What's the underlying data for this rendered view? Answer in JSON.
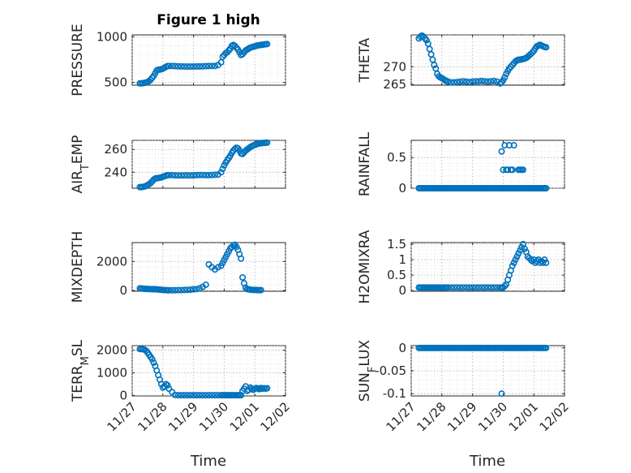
{
  "figure": {
    "title": "Figure 1 high",
    "xlabel": "Time",
    "marker_color": "#0072bd",
    "x_ticks": [
      "11/27",
      "11/28",
      "11/29",
      "11/30",
      "12/01",
      "12/02"
    ]
  },
  "chart_data": [
    {
      "type": "scatter",
      "ylabel": "PRESSURE",
      "title": "Figure 1 high",
      "ylim": [
        470,
        1020
      ],
      "yticks": [
        500,
        1000
      ],
      "yticklabels": [
        "500",
        "1000"
      ],
      "xlim": [
        0,
        5
      ],
      "x": [
        0.25,
        0.3,
        0.35,
        0.4,
        0.45,
        0.5,
        0.55,
        0.6,
        0.65,
        0.7,
        0.75,
        0.8,
        0.85,
        0.9,
        0.95,
        1.0,
        1.05,
        1.1,
        1.15,
        1.2,
        1.3,
        1.4,
        1.5,
        1.6,
        1.7,
        1.8,
        1.9,
        2.0,
        2.1,
        2.2,
        2.3,
        2.4,
        2.5,
        2.6,
        2.7,
        2.8,
        2.9,
        2.95,
        3.0,
        3.05,
        3.1,
        3.15,
        3.2,
        3.25,
        3.3,
        3.35,
        3.4,
        3.45,
        3.5,
        3.55,
        3.6,
        3.65,
        3.7,
        3.75,
        3.8,
        3.85,
        3.9,
        3.95,
        4.0,
        4.05,
        4.1,
        4.15,
        4.2,
        4.25,
        4.3,
        4.35,
        4.4
      ],
      "y": [
        490,
        490,
        492,
        495,
        498,
        505,
        515,
        530,
        550,
        570,
        600,
        630,
        640,
        640,
        645,
        650,
        660,
        670,
        680,
        680,
        680,
        678,
        676,
        675,
        674,
        674,
        674,
        674,
        675,
        675,
        676,
        678,
        680,
        680,
        680,
        690,
        720,
        780,
        800,
        820,
        830,
        850,
        870,
        900,
        910,
        900,
        880,
        860,
        830,
        800,
        810,
        830,
        850,
        860,
        870,
        880,
        885,
        890,
        895,
        900,
        905,
        908,
        910,
        912,
        915,
        918,
        920
      ]
    },
    {
      "type": "scatter",
      "ylabel": "THETA",
      "ylim": [
        264.8,
        279
      ],
      "yticks": [
        265,
        270
      ],
      "yticklabels": [
        "265",
        "270"
      ],
      "xlim": [
        0,
        5
      ],
      "x": [
        0.25,
        0.3,
        0.35,
        0.4,
        0.45,
        0.5,
        0.55,
        0.6,
        0.65,
        0.7,
        0.75,
        0.8,
        0.85,
        0.9,
        0.95,
        1.0,
        1.05,
        1.1,
        1.15,
        1.2,
        1.3,
        1.4,
        1.5,
        1.6,
        1.7,
        1.8,
        1.9,
        2.0,
        2.1,
        2.2,
        2.3,
        2.4,
        2.5,
        2.6,
        2.7,
        2.8,
        2.9,
        2.95,
        3.0,
        3.05,
        3.1,
        3.15,
        3.2,
        3.25,
        3.3,
        3.35,
        3.4,
        3.45,
        3.5,
        3.55,
        3.6,
        3.65,
        3.7,
        3.75,
        3.8,
        3.85,
        3.9,
        3.95,
        4.0,
        4.05,
        4.1,
        4.15,
        4.2,
        4.25,
        4.3,
        4.35,
        4.4
      ],
      "y": [
        278,
        278.5,
        278.8,
        278.5,
        278,
        277.5,
        276.5,
        275,
        273.5,
        272,
        270.5,
        269.5,
        268,
        267.3,
        267,
        266.8,
        266.5,
        266.2,
        266,
        265.8,
        265.6,
        265.6,
        265.7,
        265.8,
        265.9,
        265.8,
        265.7,
        265.8,
        265.9,
        265.9,
        266,
        265.9,
        265.8,
        265.9,
        266,
        265.8,
        265.3,
        265.6,
        266.2,
        267,
        268,
        268.8,
        269.5,
        270,
        270.5,
        271,
        271.5,
        271.8,
        272,
        272,
        272.1,
        272.2,
        272.3,
        272.5,
        272.8,
        273.2,
        273.6,
        274,
        274.5,
        275.2,
        275.8,
        276,
        276.2,
        276,
        275.8,
        275.6,
        275.5
      ]
    },
    {
      "type": "scatter",
      "ylabel": "AIR_TEMP",
      "ylim": [
        226,
        268
      ],
      "yticks": [
        240,
        260
      ],
      "yticklabels": [
        "240",
        "260"
      ],
      "xlim": [
        0,
        5
      ],
      "x": [
        0.25,
        0.3,
        0.35,
        0.4,
        0.45,
        0.5,
        0.55,
        0.6,
        0.65,
        0.7,
        0.75,
        0.8,
        0.85,
        0.9,
        0.95,
        1.0,
        1.05,
        1.1,
        1.15,
        1.2,
        1.3,
        1.4,
        1.5,
        1.6,
        1.7,
        1.8,
        1.9,
        2.0,
        2.1,
        2.2,
        2.3,
        2.4,
        2.5,
        2.6,
        2.7,
        2.8,
        2.9,
        2.95,
        3.0,
        3.05,
        3.1,
        3.15,
        3.2,
        3.25,
        3.3,
        3.35,
        3.4,
        3.45,
        3.5,
        3.55,
        3.6,
        3.65,
        3.7,
        3.75,
        3.8,
        3.85,
        3.9,
        3.95,
        4.0,
        4.05,
        4.1,
        4.15,
        4.2,
        4.25,
        4.3,
        4.35,
        4.4
      ],
      "y": [
        227,
        227,
        227.2,
        227.5,
        228,
        228.8,
        229.5,
        230.5,
        232,
        233.5,
        234.5,
        234.8,
        235,
        235.2,
        235.5,
        236,
        236.5,
        237,
        237.5,
        237.5,
        237.5,
        237.3,
        237.2,
        237.2,
        237.3,
        237.3,
        237.2,
        237.3,
        237.5,
        237.6,
        237.6,
        237.5,
        237.5,
        237.6,
        237.8,
        238,
        240,
        243,
        246,
        248.5,
        250.5,
        252.5,
        254.5,
        257,
        259,
        260.5,
        261.5,
        261,
        259,
        256.5,
        256,
        257.5,
        259,
        260,
        261,
        262,
        262.8,
        263.5,
        264,
        264.5,
        265,
        265.3,
        265.5,
        265.7,
        265.8,
        265.9,
        266
      ]
    },
    {
      "type": "scatter",
      "ylabel": "RAINFALL",
      "ylim": [
        0,
        0.78
      ],
      "yticks": [
        0,
        0.5
      ],
      "yticklabels": [
        "0",
        "0.5"
      ],
      "xlim": [
        0,
        5
      ],
      "x": [
        0.25,
        0.3,
        0.35,
        0.4,
        0.45,
        0.5,
        0.55,
        0.6,
        0.65,
        0.7,
        0.75,
        0.8,
        0.85,
        0.9,
        0.95,
        1.0,
        1.05,
        1.1,
        1.15,
        1.2,
        1.25,
        1.3,
        1.35,
        1.4,
        1.45,
        1.5,
        1.55,
        1.6,
        1.65,
        1.7,
        1.75,
        1.8,
        1.85,
        1.9,
        1.95,
        2.0,
        2.05,
        2.1,
        2.15,
        2.2,
        2.25,
        2.3,
        2.35,
        2.4,
        2.45,
        2.5,
        2.55,
        2.6,
        2.65,
        2.7,
        2.75,
        2.8,
        2.85,
        2.9,
        2.95,
        3.0,
        3.05,
        3.1,
        3.15,
        3.2,
        3.25,
        3.3,
        3.35,
        3.4,
        3.45,
        3.5,
        3.55,
        3.6,
        3.65,
        3.7,
        3.75,
        3.8,
        3.85,
        3.9,
        3.95,
        4.0,
        4.05,
        4.1,
        4.15,
        4.2,
        4.25,
        4.3,
        4.35,
        4.4,
        2.95,
        3.0,
        3.05,
        3.1,
        3.15,
        3.25,
        3.3,
        3.35,
        3.5,
        3.55,
        3.6,
        3.65,
        3.2,
        3.35,
        3.05
      ],
      "y": [
        0,
        0,
        0,
        0,
        0,
        0,
        0,
        0,
        0,
        0,
        0,
        0,
        0,
        0,
        0,
        0,
        0,
        0,
        0,
        0,
        0,
        0,
        0,
        0,
        0,
        0,
        0,
        0,
        0,
        0,
        0,
        0,
        0,
        0,
        0,
        0,
        0,
        0,
        0,
        0,
        0,
        0,
        0,
        0,
        0,
        0,
        0,
        0,
        0,
        0,
        0,
        0,
        0,
        0,
        0,
        0,
        0,
        0,
        0,
        0,
        0,
        0,
        0,
        0,
        0,
        0,
        0,
        0,
        0,
        0,
        0,
        0,
        0,
        0,
        0,
        0,
        0,
        0,
        0,
        0,
        0,
        0,
        0,
        0,
        0.6,
        0.3,
        0.7,
        0.3,
        0.3,
        0.3,
        0.3,
        0.7,
        0.3,
        0.3,
        0.3,
        0.3,
        0.7,
        0,
        0
      ]
    },
    {
      "type": "scatter",
      "ylabel": "MIXDEPTH",
      "ylim": [
        -50,
        3300
      ],
      "yticks": [
        0,
        2000
      ],
      "yticklabels": [
        "0",
        "2000"
      ],
      "xlim": [
        0,
        5
      ],
      "x": [
        0.25,
        0.3,
        0.35,
        0.4,
        0.45,
        0.5,
        0.55,
        0.6,
        0.65,
        0.7,
        0.75,
        0.8,
        0.85,
        0.9,
        0.95,
        1.0,
        1.05,
        1.1,
        1.15,
        1.2,
        1.3,
        1.4,
        1.5,
        1.6,
        1.7,
        1.8,
        1.9,
        2.0,
        2.1,
        2.2,
        2.3,
        2.4,
        2.5,
        2.6,
        2.7,
        2.8,
        2.9,
        2.95,
        3.0,
        3.05,
        3.1,
        3.15,
        3.2,
        3.25,
        3.3,
        3.35,
        3.4,
        3.45,
        3.5,
        3.55,
        3.6,
        3.65,
        3.7,
        3.75,
        3.8,
        3.85,
        3.9,
        3.95,
        4.0,
        4.05,
        4.1,
        4.15,
        4.2
      ],
      "y": [
        150,
        140,
        130,
        120,
        110,
        110,
        100,
        100,
        100,
        90,
        90,
        80,
        70,
        60,
        50,
        40,
        30,
        30,
        20,
        20,
        20,
        20,
        30,
        30,
        40,
        50,
        60,
        80,
        100,
        150,
        250,
        400,
        1800,
        1600,
        1450,
        1600,
        1700,
        1900,
        2100,
        2300,
        2500,
        2700,
        2900,
        3000,
        3100,
        3150,
        3000,
        2800,
        2500,
        2200,
        900,
        500,
        200,
        100,
        80,
        60,
        50,
        40,
        40,
        40,
        30,
        30,
        30
      ]
    },
    {
      "type": "scatter",
      "ylabel": "H2OMIXRA",
      "ylim": [
        -0.02,
        1.55
      ],
      "yticks": [
        0,
        0.5,
        1,
        1.5
      ],
      "yticklabels": [
        "0",
        "0.5",
        "1",
        "1.5"
      ],
      "xlim": [
        0,
        5
      ],
      "x": [
        0.25,
        0.3,
        0.35,
        0.4,
        0.45,
        0.5,
        0.55,
        0.6,
        0.65,
        0.7,
        0.75,
        0.8,
        0.85,
        0.9,
        0.95,
        1.0,
        1.05,
        1.1,
        1.15,
        1.2,
        1.3,
        1.4,
        1.5,
        1.6,
        1.7,
        1.8,
        1.9,
        2.0,
        2.1,
        2.2,
        2.3,
        2.4,
        2.5,
        2.6,
        2.7,
        2.8,
        2.9,
        2.95,
        3.0,
        3.05,
        3.1,
        3.15,
        3.2,
        3.25,
        3.3,
        3.35,
        3.4,
        3.45,
        3.5,
        3.55,
        3.6,
        3.65,
        3.7,
        3.75,
        3.8,
        3.85,
        3.9,
        3.95,
        4.0,
        4.05,
        4.1,
        4.15,
        4.2,
        4.25,
        4.3,
        4.35,
        4.4
      ],
      "y": [
        0.1,
        0.1,
        0.1,
        0.1,
        0.1,
        0.1,
        0.1,
        0.1,
        0.1,
        0.1,
        0.1,
        0.1,
        0.1,
        0.1,
        0.1,
        0.1,
        0.1,
        0.1,
        0.1,
        0.1,
        0.1,
        0.1,
        0.1,
        0.1,
        0.1,
        0.1,
        0.1,
        0.1,
        0.1,
        0.1,
        0.1,
        0.1,
        0.1,
        0.1,
        0.1,
        0.1,
        0.1,
        0.1,
        0.1,
        0.15,
        0.2,
        0.35,
        0.5,
        0.65,
        0.8,
        0.9,
        1.0,
        1.1,
        1.2,
        1.3,
        1.4,
        1.5,
        1.35,
        1.25,
        1.1,
        1.05,
        1.0,
        0.95,
        1.0,
        0.9,
        0.95,
        1.0,
        0.9,
        0.95,
        0.9,
        1.0,
        0.9
      ]
    },
    {
      "type": "scatter",
      "ylabel": "TERR_MSL",
      "ylim": [
        -20,
        2200
      ],
      "yticks": [
        0,
        1000,
        2000
      ],
      "yticklabels": [
        "0",
        "1000",
        "2000"
      ],
      "xlim": [
        0,
        5
      ],
      "x": [
        0.25,
        0.3,
        0.35,
        0.4,
        0.45,
        0.5,
        0.55,
        0.6,
        0.65,
        0.7,
        0.75,
        0.8,
        0.85,
        0.9,
        0.95,
        1.0,
        1.05,
        1.1,
        1.15,
        1.2,
        1.3,
        1.4,
        1.5,
        1.6,
        1.7,
        1.8,
        1.9,
        2.0,
        2.1,
        2.2,
        2.3,
        2.4,
        2.5,
        2.6,
        2.7,
        2.8,
        2.9,
        2.95,
        3.0,
        3.05,
        3.1,
        3.15,
        3.2,
        3.25,
        3.3,
        3.35,
        3.4,
        3.45,
        3.5,
        3.55,
        3.6,
        3.65,
        3.7,
        3.75,
        3.8,
        3.85,
        3.9,
        3.95,
        4.0,
        4.05,
        4.1,
        4.15,
        4.2,
        4.25,
        4.3,
        4.35,
        4.4
      ],
      "y": [
        2050,
        2050,
        2040,
        2020,
        1980,
        1900,
        1800,
        1700,
        1600,
        1450,
        1300,
        1100,
        900,
        700,
        500,
        350,
        400,
        500,
        450,
        300,
        150,
        20,
        10,
        10,
        10,
        10,
        10,
        10,
        10,
        10,
        10,
        10,
        10,
        10,
        10,
        10,
        10,
        10,
        10,
        10,
        10,
        10,
        10,
        10,
        10,
        10,
        10,
        10,
        10,
        10,
        200,
        300,
        400,
        200,
        250,
        350,
        300,
        250,
        300,
        330,
        300,
        280,
        330,
        300,
        320,
        300,
        320
      ]
    },
    {
      "type": "scatter",
      "ylabel": "SUN_FLUX",
      "ylim": [
        -0.105,
        0.005
      ],
      "yticks": [
        -0.1,
        -0.05,
        0
      ],
      "yticklabels": [
        "-0.1",
        "-0.05",
        "0"
      ],
      "xlim": [
        0,
        5
      ],
      "x": [
        0.25,
        0.3,
        0.35,
        0.4,
        0.45,
        0.5,
        0.55,
        0.6,
        0.65,
        0.7,
        0.75,
        0.8,
        0.85,
        0.9,
        0.95,
        1.0,
        1.05,
        1.1,
        1.15,
        1.2,
        1.25,
        1.3,
        1.35,
        1.4,
        1.45,
        1.5,
        1.55,
        1.6,
        1.65,
        1.7,
        1.75,
        1.8,
        1.85,
        1.9,
        1.95,
        2.0,
        2.05,
        2.1,
        2.15,
        2.2,
        2.25,
        2.3,
        2.35,
        2.4,
        2.45,
        2.5,
        2.55,
        2.6,
        2.65,
        2.7,
        2.75,
        2.8,
        2.85,
        2.9,
        2.95,
        3.0,
        3.05,
        3.1,
        3.15,
        3.2,
        3.25,
        3.3,
        3.35,
        3.4,
        3.45,
        3.5,
        3.55,
        3.6,
        3.65,
        3.7,
        3.75,
        3.8,
        3.85,
        3.9,
        3.95,
        4.0,
        4.05,
        4.1,
        4.15,
        4.2,
        4.25,
        4.3,
        4.35,
        4.4,
        2.95
      ],
      "y": [
        0,
        0,
        0,
        0,
        0,
        0,
        0,
        0,
        0,
        0,
        0,
        0,
        0,
        0,
        0,
        0,
        0,
        0,
        0,
        0,
        0,
        0,
        0,
        0,
        0,
        0,
        0,
        0,
        0,
        0,
        0,
        0,
        0,
        0,
        0,
        0,
        0,
        0,
        0,
        0,
        0,
        0,
        0,
        0,
        0,
        0,
        0,
        0,
        0,
        0,
        0,
        0,
        0,
        0,
        0,
        0,
        0,
        0,
        0,
        0,
        0,
        0,
        0,
        0,
        0,
        0,
        0,
        0,
        0,
        0,
        0,
        0,
        0,
        0,
        0,
        0,
        0,
        0,
        0,
        0,
        0,
        0,
        0,
        0,
        -0.1
      ]
    }
  ]
}
